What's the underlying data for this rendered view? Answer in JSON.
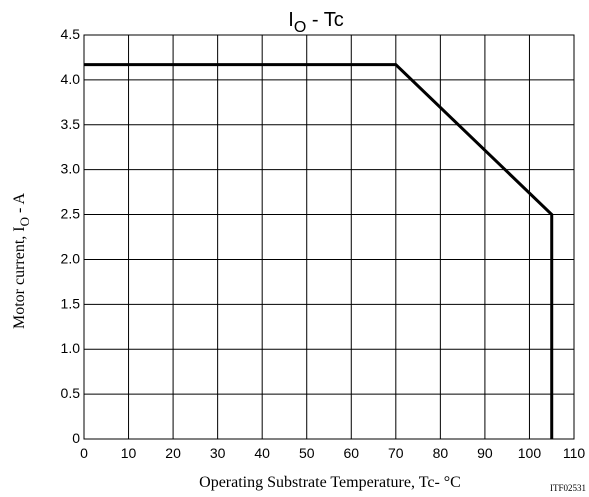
{
  "chart_data": {
    "type": "line",
    "title": {
      "main": "I",
      "sub": "O",
      "rest": " - Tc"
    },
    "xlabel": "Operating Substrate Temperature, Tc- °C",
    "ylabel": {
      "pre": "Motor current, I",
      "sub": "O",
      "post": " - A"
    },
    "xlim": [
      0,
      110
    ],
    "ylim": [
      0,
      4.5
    ],
    "x_ticks": [
      0,
      10,
      20,
      30,
      40,
      50,
      60,
      70,
      80,
      90,
      100,
      110
    ],
    "x_tick_labels": [
      "0",
      "10",
      "20",
      "30",
      "40",
      "50",
      "60",
      "70",
      "80",
      "90",
      "100",
      "110"
    ],
    "y_ticks": [
      0,
      0.5,
      1.0,
      1.5,
      2.0,
      2.5,
      3.0,
      3.5,
      4.0,
      4.5
    ],
    "y_tick_labels": [
      "0",
      "0.5",
      "1.0",
      "1.5",
      "2.0",
      "2.5",
      "3.0",
      "3.5",
      "4.0",
      "4.5"
    ],
    "grid": true,
    "series": [
      {
        "x": [
          0,
          70,
          105,
          105
        ],
        "y": [
          4.17,
          4.17,
          2.5,
          0
        ]
      }
    ],
    "code": "ITF02531"
  }
}
